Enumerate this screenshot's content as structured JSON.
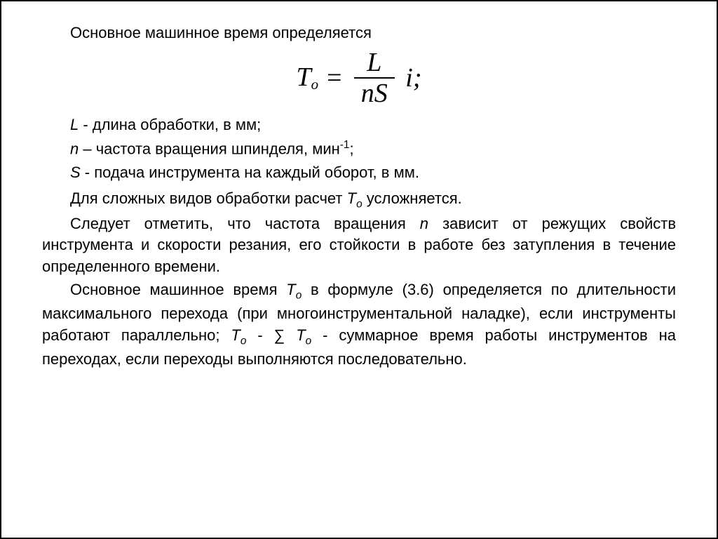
{
  "text_color": "#000000",
  "background_color": "#ffffff",
  "border_color": "#000000",
  "body_fontsize": 22,
  "formula_fontsize": 38,
  "intro": "Основное машинное время определяется",
  "formula": {
    "lhs_var": "T",
    "lhs_sub": "о",
    "eq": " = ",
    "num": "L",
    "den": "nS",
    "suffix": "i;"
  },
  "definitions": {
    "L_sym": "L",
    "L_text": " - длина обработки, в мм;",
    "n_sym": "n",
    "n_text_a": " – частота вращения шпинделя, мин",
    "n_exp": "-1",
    "n_text_b": ";",
    "S_sym": "S",
    "S_text": " - подача инструмента на каждый оборот, в мм."
  },
  "para_note": {
    "a": "Для сложных видов обработки расчет ",
    "sym_var": "T",
    "sym_sub": "о",
    "b": " усложняется."
  },
  "para_freq": {
    "a": "Следует отметить, что частота вращения ",
    "n_sym": "n",
    "b": " зависит от режущих свойств инструмента и скорости резания, его стойкости в работе без затупления в течение определенного времени."
  },
  "para_main": {
    "a": "Основное машинное время ",
    "T1_var": "T",
    "T1_sub": "о",
    "b": " в формуле (3.6) определяется по длительности максимального перехода (при многоинструментальной наладке), если инструменты работают параллельно; ",
    "T2_var": "T",
    "T2_sub": "о",
    "c": " - ∑ ",
    "T3_var": "T",
    "T3_sub": "о",
    "d": " - суммарное время работы инструментов на переходах, если переходы выполняются последовательно."
  }
}
